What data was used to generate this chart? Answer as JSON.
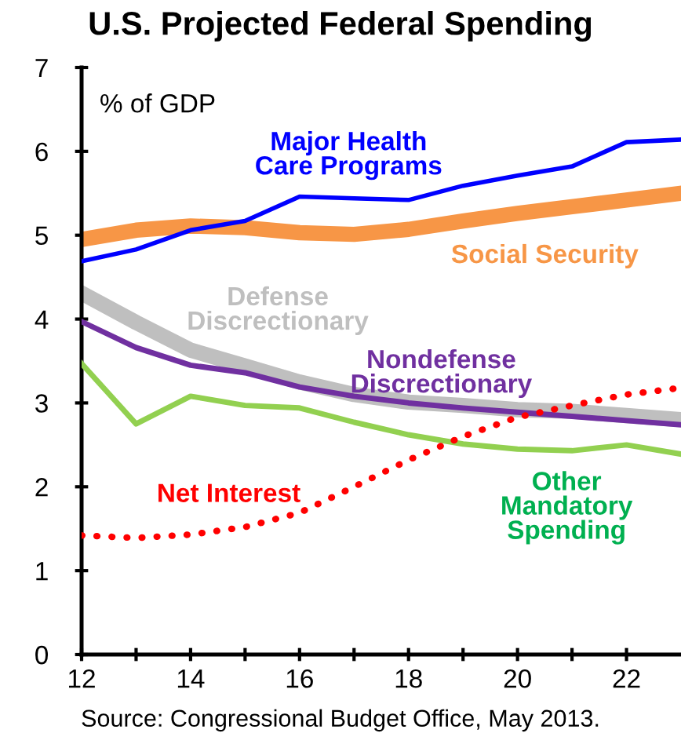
{
  "chart_data": {
    "type": "line",
    "title": "U.S. Projected Federal Spending",
    "ylabel": "% of GDP",
    "x": [
      12,
      13,
      14,
      15,
      16,
      17,
      18,
      19,
      20,
      21,
      22,
      23
    ],
    "series": [
      {
        "name": "Major Health\nCare Programs",
        "color": "#0000ff",
        "values": [
          4.69,
          4.83,
          5.06,
          5.17,
          5.46,
          5.44,
          5.42,
          5.59,
          5.71,
          5.82,
          6.11,
          6.14
        ]
      },
      {
        "name": "Social Security",
        "color": "#f79646",
        "values": [
          4.95,
          5.06,
          5.11,
          5.09,
          5.03,
          5.01,
          5.07,
          5.17,
          5.26,
          5.34,
          5.42,
          5.5
        ]
      },
      {
        "name": "Defense\nDiscrectionary",
        "color": "#bfbfbf",
        "values": [
          4.31,
          3.96,
          3.63,
          3.44,
          3.25,
          3.1,
          3.01,
          2.97,
          2.92,
          2.9,
          2.85,
          2.8
        ]
      },
      {
        "name": "Nondefense\nDiscrectionary",
        "color": "#7030a0",
        "values": [
          3.97,
          3.66,
          3.45,
          3.36,
          3.19,
          3.08,
          3.0,
          2.94,
          2.89,
          2.84,
          2.79,
          2.74
        ]
      },
      {
        "name": "Other\nMandatory\nSpending",
        "color": "#92d050",
        "values": [
          3.47,
          2.75,
          3.08,
          2.97,
          2.94,
          2.77,
          2.62,
          2.51,
          2.45,
          2.43,
          2.5,
          2.39
        ]
      },
      {
        "name": "Net Interest",
        "color": "#ff0000",
        "line_style": "dotted",
        "values": [
          1.42,
          1.39,
          1.43,
          1.52,
          1.69,
          2.0,
          2.32,
          2.6,
          2.83,
          2.97,
          3.1,
          3.18
        ]
      }
    ],
    "xlim": [
      12,
      23
    ],
    "xticks": [
      12,
      {
        "value": 13,
        "label": null
      },
      14,
      {
        "value": 15,
        "label": null
      },
      16,
      {
        "value": 17,
        "label": null
      },
      18,
      {
        "value": 19,
        "label": null
      },
      20,
      {
        "value": 21,
        "label": null
      },
      22
    ],
    "ylim": [
      0,
      7
    ],
    "yticks": [
      0,
      1,
      2,
      3,
      4,
      5,
      6,
      7
    ],
    "grid": false,
    "legend": false,
    "annotations": [
      "Source: Congressional Budget Office, May 2013."
    ]
  }
}
